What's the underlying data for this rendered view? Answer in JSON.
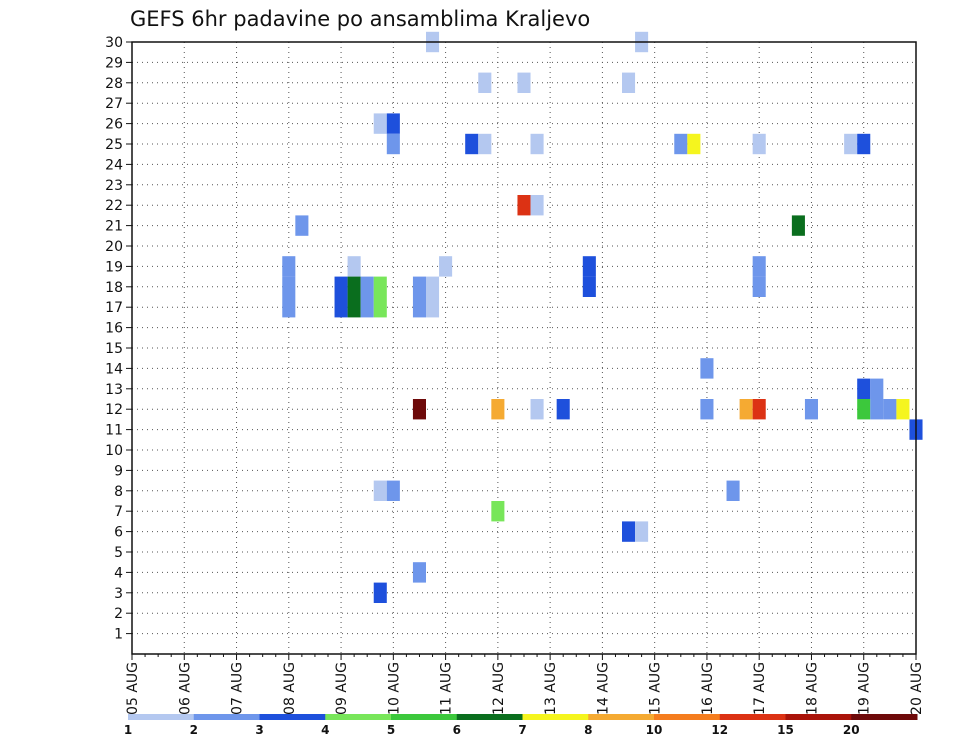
{
  "chart_data": {
    "type": "heatmap",
    "title": "GEFS 6hr padavine po ansamblima Kraljevo",
    "y_ticks": [
      "1",
      "2",
      "3",
      "4",
      "5",
      "6",
      "7",
      "8",
      "9",
      "10",
      "11",
      "12",
      "13",
      "14",
      "15",
      "16",
      "17",
      "18",
      "19",
      "20",
      "21",
      "22",
      "23",
      "24",
      "25",
      "26",
      "27",
      "28",
      "29",
      "30"
    ],
    "x_ticks": [
      "05 AUG",
      "06 AUG",
      "07 AUG",
      "08 AUG",
      "09 AUG",
      "10 AUG",
      "11 AUG",
      "12 AUG",
      "13 AUG",
      "14 AUG",
      "15 AUG",
      "16 AUG",
      "17 AUG",
      "18 AUG",
      "19 AUG",
      "20 AUG"
    ],
    "x_range_steps": [
      0,
      60
    ],
    "y_range": [
      0,
      30
    ],
    "grid": true,
    "colorbar": {
      "labels": [
        "1",
        "2",
        "3",
        "4",
        "5",
        "6",
        "7",
        "8",
        "10",
        "12",
        "15",
        "20"
      ],
      "colors": [
        "#b4c8f0",
        "#6e96eb",
        "#1e50dc",
        "#78e65a",
        "#3cc83c",
        "#0a6e1e",
        "#f5f51e",
        "#f5aa32",
        "#f57d1e",
        "#dc3214",
        "#aa140a",
        "#6e0a0a"
      ]
    },
    "cells": [
      {
        "m": 30,
        "s": 23,
        "v": 1.5
      },
      {
        "m": 30,
        "s": 39,
        "v": 1.5
      },
      {
        "m": 28,
        "s": 27,
        "v": 1.5
      },
      {
        "m": 28,
        "s": 30,
        "v": 1.5
      },
      {
        "m": 28,
        "s": 38,
        "v": 1.5
      },
      {
        "m": 26,
        "s": 19,
        "v": 1.5
      },
      {
        "m": 26,
        "s": 20,
        "v": 3.5
      },
      {
        "m": 25,
        "s": 20,
        "v": 2.5
      },
      {
        "m": 25,
        "s": 26,
        "v": 3.5
      },
      {
        "m": 25,
        "s": 27,
        "v": 1.5
      },
      {
        "m": 25,
        "s": 31,
        "v": 1.5
      },
      {
        "m": 25,
        "s": 42,
        "v": 2.5
      },
      {
        "m": 25,
        "s": 43,
        "v": 7.5
      },
      {
        "m": 25,
        "s": 48,
        "v": 1.5
      },
      {
        "m": 25,
        "s": 55,
        "v": 1.5
      },
      {
        "m": 25,
        "s": 56,
        "v": 3.5
      },
      {
        "m": 22,
        "s": 30,
        "v": 13.5
      },
      {
        "m": 22,
        "s": 31,
        "v": 1.5
      },
      {
        "m": 21,
        "s": 13,
        "v": 2.5
      },
      {
        "m": 21,
        "s": 51,
        "v": 6.5
      },
      {
        "m": 19,
        "s": 24,
        "v": 1.5
      },
      {
        "m": 19,
        "s": 12,
        "v": 2.5
      },
      {
        "m": 19,
        "s": 17,
        "v": 1.5
      },
      {
        "m": 19,
        "s": 35,
        "v": 3.5
      },
      {
        "m": 19,
        "s": 48,
        "v": 2.5
      },
      {
        "m": 18,
        "s": 12,
        "v": 2.5
      },
      {
        "m": 18,
        "s": 16,
        "v": 3.5
      },
      {
        "m": 18,
        "s": 17,
        "v": 6.5
      },
      {
        "m": 18,
        "s": 18,
        "v": 2.5
      },
      {
        "m": 18,
        "s": 19,
        "v": 4.5
      },
      {
        "m": 18,
        "s": 22,
        "v": 2.5
      },
      {
        "m": 18,
        "s": 23,
        "v": 1.5
      },
      {
        "m": 18,
        "s": 35,
        "v": 3.5
      },
      {
        "m": 18,
        "s": 48,
        "v": 2.5
      },
      {
        "m": 17,
        "s": 12,
        "v": 2.5
      },
      {
        "m": 17,
        "s": 16,
        "v": 3.5
      },
      {
        "m": 17,
        "s": 17,
        "v": 6.5
      },
      {
        "m": 17,
        "s": 18,
        "v": 2.5
      },
      {
        "m": 17,
        "s": 19,
        "v": 4.5
      },
      {
        "m": 17,
        "s": 22,
        "v": 2.5
      },
      {
        "m": 17,
        "s": 23,
        "v": 1.5
      },
      {
        "m": 14,
        "s": 44,
        "v": 2.5
      },
      {
        "m": 13,
        "s": 56,
        "v": 3.5
      },
      {
        "m": 13,
        "s": 57,
        "v": 2.5
      },
      {
        "m": 12,
        "s": 22,
        "v": 25
      },
      {
        "m": 12,
        "s": 28,
        "v": 9
      },
      {
        "m": 12,
        "s": 31,
        "v": 1.5
      },
      {
        "m": 12,
        "s": 33,
        "v": 3.5
      },
      {
        "m": 12,
        "s": 44,
        "v": 2.5
      },
      {
        "m": 12,
        "s": 47,
        "v": 9
      },
      {
        "m": 12,
        "s": 48,
        "v": 13.5
      },
      {
        "m": 12,
        "s": 52,
        "v": 2.5
      },
      {
        "m": 12,
        "s": 56,
        "v": 5.5
      },
      {
        "m": 12,
        "s": 57,
        "v": 2.5
      },
      {
        "m": 12,
        "s": 58,
        "v": 2.5
      },
      {
        "m": 12,
        "s": 59,
        "v": 7.5
      },
      {
        "m": 11,
        "s": 60,
        "v": 3.5
      },
      {
        "m": 8,
        "s": 19,
        "v": 1.5
      },
      {
        "m": 8,
        "s": 20,
        "v": 2.5
      },
      {
        "m": 8,
        "s": 46,
        "v": 2.5
      },
      {
        "m": 7,
        "s": 28,
        "v": 4.5
      },
      {
        "m": 6,
        "s": 38,
        "v": 3.5
      },
      {
        "m": 6,
        "s": 39,
        "v": 1.5
      },
      {
        "m": 4,
        "s": 22,
        "v": 2.5
      },
      {
        "m": 3,
        "s": 19,
        "v": 3.5
      }
    ]
  }
}
